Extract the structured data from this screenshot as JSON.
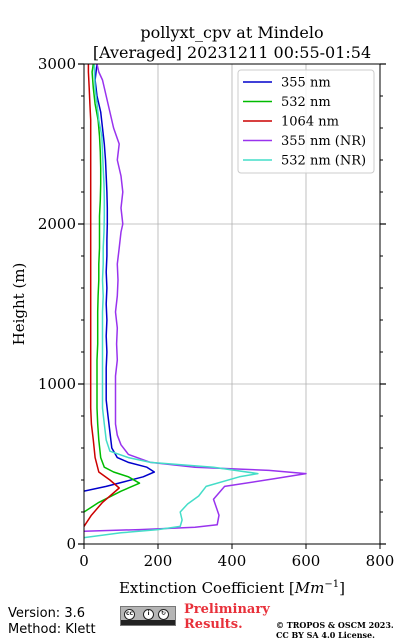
{
  "chart_data": {
    "type": "line",
    "title_line1": "pollyxt_cpv at Mindelo",
    "title_line2": "[Averaged] 20231211 00:55-01:54",
    "xlabel": "Extinction Coefficient [",
    "xlabel_unit": "Mm",
    "xlabel_exp": "−1",
    "xlabel_close": "]",
    "ylabel": "Height (m)",
    "xlim": [
      0,
      800
    ],
    "ylim": [
      0,
      3000
    ],
    "xticks": [
      0,
      200,
      400,
      600,
      800
    ],
    "yticks": [
      0,
      1000,
      2000,
      3000
    ],
    "xtick_labels": [
      "0",
      "200",
      "400",
      "600",
      "800"
    ],
    "ytick_labels": [
      "0",
      "1000",
      "2000",
      "3000"
    ],
    "grid": true,
    "legend_position": "top-right",
    "series": [
      {
        "name": "355 nm",
        "color": "#0000cc",
        "points": [
          [
            0,
            330
          ],
          [
            60,
            360
          ],
          [
            110,
            390
          ],
          [
            160,
            420
          ],
          [
            190,
            450
          ],
          [
            170,
            480
          ],
          [
            120,
            510
          ],
          [
            90,
            540
          ],
          [
            75,
            600
          ],
          [
            70,
            700
          ],
          [
            65,
            800
          ],
          [
            60,
            900
          ],
          [
            60,
            1000
          ],
          [
            60,
            1100
          ],
          [
            62,
            1200
          ],
          [
            60,
            1300
          ],
          [
            62,
            1400
          ],
          [
            60,
            1500
          ],
          [
            62,
            1600
          ],
          [
            60,
            1700
          ],
          [
            62,
            1800
          ],
          [
            62,
            1900
          ],
          [
            63,
            2000
          ],
          [
            63,
            2100
          ],
          [
            62,
            2200
          ],
          [
            60,
            2300
          ],
          [
            58,
            2400
          ],
          [
            55,
            2500
          ],
          [
            50,
            2600
          ],
          [
            45,
            2700
          ],
          [
            35,
            2800
          ],
          [
            30,
            2900
          ],
          [
            35,
            3000
          ]
        ]
      },
      {
        "name": "532 nm",
        "color": "#00bb00",
        "points": [
          [
            0,
            200
          ],
          [
            40,
            260
          ],
          [
            100,
            330
          ],
          [
            150,
            380
          ],
          [
            120,
            420
          ],
          [
            80,
            450
          ],
          [
            55,
            480
          ],
          [
            45,
            540
          ],
          [
            40,
            650
          ],
          [
            37,
            750
          ],
          [
            35,
            850
          ],
          [
            35,
            950
          ],
          [
            35,
            1050
          ],
          [
            35,
            1150
          ],
          [
            37,
            1250
          ],
          [
            37,
            1350
          ],
          [
            37,
            1450
          ],
          [
            38,
            1550
          ],
          [
            40,
            1650
          ],
          [
            40,
            1750
          ],
          [
            42,
            1850
          ],
          [
            42,
            1950
          ],
          [
            42,
            2050
          ],
          [
            44,
            2150
          ],
          [
            45,
            2250
          ],
          [
            45,
            2350
          ],
          [
            44,
            2450
          ],
          [
            42,
            2550
          ],
          [
            38,
            2650
          ],
          [
            30,
            2750
          ],
          [
            25,
            2850
          ],
          [
            22,
            2950
          ],
          [
            25,
            3000
          ]
        ]
      },
      {
        "name": "1064 nm",
        "color": "#cc0000",
        "points": [
          [
            0,
            110
          ],
          [
            20,
            180
          ],
          [
            50,
            260
          ],
          [
            95,
            350
          ],
          [
            70,
            400
          ],
          [
            40,
            450
          ],
          [
            30,
            540
          ],
          [
            25,
            650
          ],
          [
            20,
            750
          ],
          [
            18,
            850
          ],
          [
            18,
            950
          ],
          [
            18,
            1050
          ],
          [
            18,
            1150
          ],
          [
            18,
            1250
          ],
          [
            18,
            1350
          ],
          [
            18,
            1450
          ],
          [
            18,
            1550
          ],
          [
            18,
            1650
          ],
          [
            18,
            1750
          ],
          [
            18,
            1850
          ],
          [
            18,
            1950
          ],
          [
            18,
            2050
          ],
          [
            18,
            2150
          ],
          [
            18,
            2250
          ],
          [
            18,
            2350
          ],
          [
            18,
            2450
          ],
          [
            18,
            2550
          ],
          [
            18,
            2650
          ],
          [
            16,
            2750
          ],
          [
            14,
            2850
          ],
          [
            12,
            2950
          ],
          [
            12,
            3000
          ]
        ]
      },
      {
        "name": "355 nm (NR)",
        "color": "#9933ee",
        "points": [
          [
            0,
            80
          ],
          [
            150,
            90
          ],
          [
            300,
            105
          ],
          [
            360,
            120
          ],
          [
            365,
            180
          ],
          [
            350,
            280
          ],
          [
            380,
            360
          ],
          [
            520,
            410
          ],
          [
            600,
            440
          ],
          [
            500,
            460
          ],
          [
            300,
            480
          ],
          [
            180,
            510
          ],
          [
            120,
            560
          ],
          [
            100,
            620
          ],
          [
            90,
            680
          ],
          [
            85,
            750
          ],
          [
            85,
            850
          ],
          [
            85,
            950
          ],
          [
            85,
            1050
          ],
          [
            90,
            1150
          ],
          [
            88,
            1250
          ],
          [
            90,
            1350
          ],
          [
            85,
            1450
          ],
          [
            90,
            1550
          ],
          [
            92,
            1650
          ],
          [
            90,
            1750
          ],
          [
            95,
            1850
          ],
          [
            100,
            1950
          ],
          [
            105,
            2000
          ],
          [
            100,
            2100
          ],
          [
            105,
            2200
          ],
          [
            100,
            2300
          ],
          [
            90,
            2400
          ],
          [
            95,
            2500
          ],
          [
            80,
            2600
          ],
          [
            70,
            2700
          ],
          [
            60,
            2800
          ],
          [
            50,
            2900
          ],
          [
            40,
            2950
          ],
          [
            35,
            3000
          ]
        ]
      },
      {
        "name": "532 nm (NR)",
        "color": "#44ddc8",
        "points": [
          [
            0,
            40
          ],
          [
            100,
            70
          ],
          [
            200,
            90
          ],
          [
            260,
            110
          ],
          [
            265,
            150
          ],
          [
            260,
            200
          ],
          [
            280,
            250
          ],
          [
            310,
            300
          ],
          [
            330,
            360
          ],
          [
            420,
            420
          ],
          [
            470,
            440
          ],
          [
            350,
            480
          ],
          [
            180,
            510
          ],
          [
            120,
            540
          ],
          [
            70,
            580
          ],
          [
            60,
            650
          ],
          [
            55,
            750
          ],
          [
            50,
            850
          ],
          [
            50,
            950
          ],
          [
            50,
            1050
          ],
          [
            50,
            1150
          ],
          [
            50,
            1250
          ],
          [
            50,
            1350
          ],
          [
            50,
            1450
          ],
          [
            52,
            1550
          ],
          [
            50,
            1650
          ],
          [
            52,
            1750
          ],
          [
            52,
            1850
          ],
          [
            54,
            1950
          ],
          [
            55,
            2050
          ],
          [
            55,
            2150
          ],
          [
            54,
            2250
          ],
          [
            52,
            2350
          ],
          [
            50,
            2450
          ],
          [
            48,
            2550
          ],
          [
            40,
            2650
          ],
          [
            35,
            2750
          ],
          [
            30,
            2850
          ],
          [
            28,
            2950
          ],
          [
            28,
            3000
          ]
        ]
      }
    ]
  },
  "footer": {
    "version": "Version: 3.6",
    "method": "Method: Klett",
    "prelim_line1": "Preliminary",
    "prelim_line2": "Results.",
    "copyright_line1": "© TROPOS & OSCM 2023.",
    "copyright_line2": "CC BY SA 4.0 License."
  },
  "icons": {
    "cc": "cc-by-sa-license-icon"
  }
}
